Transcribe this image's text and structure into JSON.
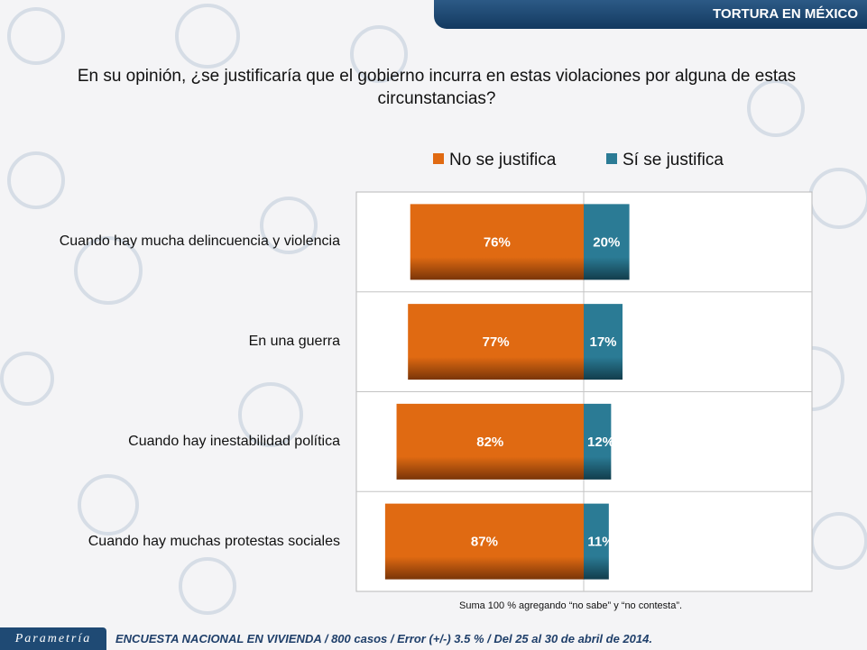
{
  "header": {
    "title": "TORTURA EN MÉXICO"
  },
  "question": {
    "text": "En su opinión, ¿se justificaría que el gobierno incurra en estas violaciones por alguna de estas circunstancias?"
  },
  "footnote": "Suma 100 %  agregando “no sabe” y “no contesta”.",
  "footer": {
    "brand": "Parametría",
    "survey_text": "ENCUESTA NACIONAL EN VIVIENDA / 800 casos / Error (+/-) 3.5 % / Del 25 al 30 de abril de 2014."
  },
  "colors": {
    "no": "#e06a12",
    "si": "#2b7b95",
    "header": "#1f4a74"
  },
  "chart_data": {
    "type": "bar",
    "orientation": "horizontal-diverging",
    "categories": [
      "Cuando hay mucha delincuencia y violencia",
      "En una guerra",
      "Cuando hay inestabilidad política",
      "Cuando hay muchas protestas sociales"
    ],
    "series": [
      {
        "name": "No se justifica",
        "values": [
          76,
          77,
          82,
          87
        ],
        "labels": [
          "76%",
          "77%",
          "82%",
          "87%"
        ],
        "direction": "left"
      },
      {
        "name": "Sí se justifica",
        "values": [
          20,
          17,
          12,
          11
        ],
        "labels": [
          "20%",
          "17%",
          "12%",
          "11%"
        ],
        "direction": "right"
      }
    ],
    "legend_position": "top",
    "unit": "%"
  }
}
